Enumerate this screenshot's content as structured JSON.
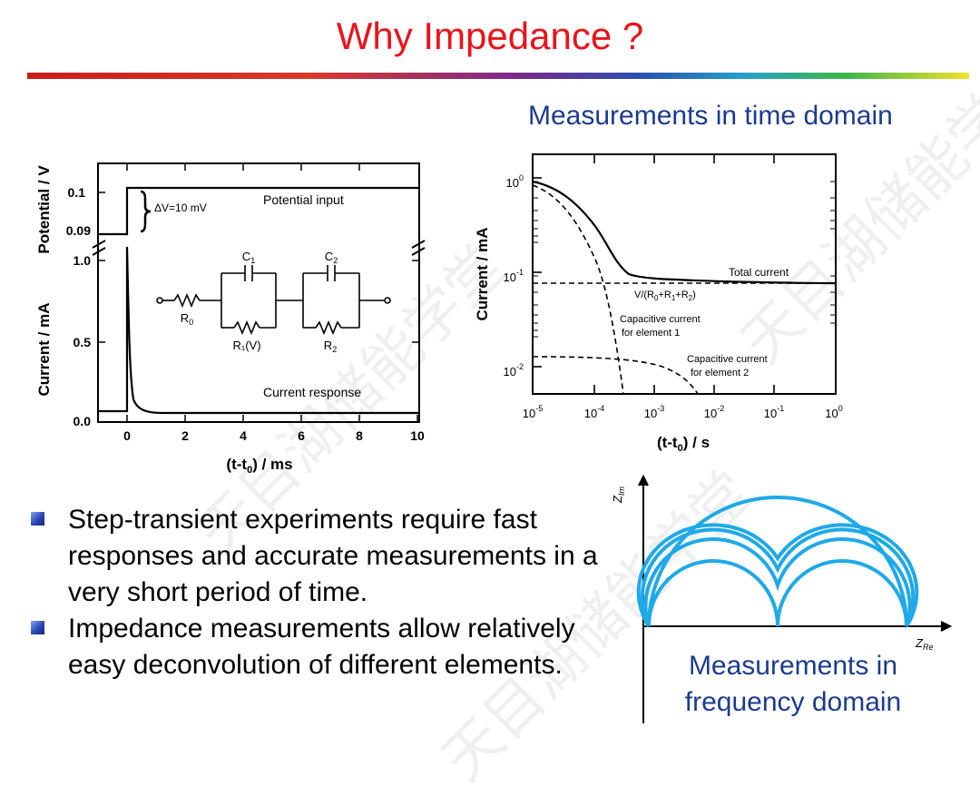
{
  "title": "Why Impedance ?",
  "time_domain_label": "Measurements in time domain",
  "frequency_domain_label": "Measurements in\nfrequency domain",
  "bullets": [
    "Step-transient experiments require fast responses and accurate measurements in a very short period of time.",
    "Impedance measurements allow relatively easy deconvolution of different elements."
  ],
  "watermark_text": "天目湖储能学堂",
  "colors": {
    "title": "#e8141b",
    "heading": "#1c3b8f",
    "nyquist_arcs": "#1fa9e8",
    "bullet": "#2c48b8"
  },
  "chart_data": [
    {
      "type": "line",
      "x_label": "(t-t0) / ms",
      "x_ticks": [
        "0",
        "2",
        "4",
        "6",
        "8",
        "10"
      ],
      "xlim": [
        0,
        10
      ],
      "panels": [
        {
          "y_label": "Potential / V",
          "y_ticks": [
            "0.09",
            "0.1"
          ],
          "series": [
            {
              "name": "Potential input",
              "x": [
                -1,
                0,
                0,
                10
              ],
              "y": [
                0.09,
                0.09,
                0.1,
                0.1
              ]
            }
          ],
          "annotation": "ΔV=10 mV"
        },
        {
          "y_label": "Current / mA",
          "y_ticks": [
            "0.0",
            "0.5",
            "1.0"
          ],
          "series": [
            {
              "name": "Current response",
              "x": [
                -1,
                0,
                0,
                0.05,
                0.1,
                0.2,
                0.3,
                0.5,
                1,
                2,
                10
              ],
              "y": [
                0.03,
                0.03,
                1.0,
                0.7,
                0.45,
                0.25,
                0.15,
                0.08,
                0.06,
                0.06,
                0.06
              ]
            }
          ]
        }
      ],
      "circuit": {
        "labels": [
          "R0",
          "C1",
          "R1(V)",
          "C2",
          "R2"
        ]
      }
    },
    {
      "type": "line",
      "x_label": "(t-t0) / s",
      "y_label": "Current / mA",
      "x_scale": "log",
      "y_scale": "log",
      "x_ticks": [
        "10-5",
        "10-4",
        "10-3",
        "10-2",
        "10-1",
        "100"
      ],
      "y_ticks": [
        "10-2",
        "10-1",
        "100"
      ],
      "xlim": [
        1e-05,
        1
      ],
      "ylim": [
        0.005,
        1.2
      ],
      "series": [
        {
          "name": "Total current",
          "x": [
            1e-05,
            3e-05,
            8e-05,
            0.00015,
            0.0003,
            0.001,
            0.01,
            1
          ],
          "y": [
            0.9,
            0.75,
            0.45,
            0.18,
            0.1,
            0.095,
            0.085,
            0.08
          ]
        },
        {
          "name": "V/(R0+R1+R2)",
          "x": [
            1e-05,
            1
          ],
          "y": [
            0.08,
            0.08
          ]
        },
        {
          "name": "Capacitive current for element 1",
          "x": [
            1e-05,
            3e-05,
            0.0001,
            0.0002,
            0.0003,
            0.0004
          ],
          "y": [
            0.82,
            0.6,
            0.25,
            0.06,
            0.015,
            0.006
          ]
        },
        {
          "name": "Capacitive current for element 2",
          "x": [
            1e-05,
            0.0003,
            0.001,
            0.003,
            0.006
          ],
          "y": [
            0.014,
            0.013,
            0.011,
            0.008,
            0.005
          ]
        }
      ],
      "annotations": [
        "Total current",
        "V/(R0+R1+R2)",
        "Capacitive current for element 1",
        "Capacitive current for element 2"
      ]
    },
    {
      "type": "line",
      "x_label": "ZRe",
      "y_label": "ZIm",
      "series": [
        {
          "x": [
            0,
            0.5,
            1
          ],
          "y": [
            0,
            0.5,
            0
          ]
        },
        {
          "x": [
            0,
            0.25,
            0.5,
            0.75,
            1
          ],
          "y": [
            0,
            0.26,
            0.25,
            0.26,
            0
          ]
        },
        {
          "x": [
            0,
            0.25,
            0.5,
            0.75,
            1
          ],
          "y": [
            0,
            0.24,
            0.17,
            0.24,
            0
          ]
        },
        {
          "x": [
            0,
            0.25,
            0.5,
            0.75,
            1
          ],
          "y": [
            0,
            0.22,
            0.08,
            0.22,
            0
          ]
        },
        {
          "x": [
            0,
            0.25,
            0.5,
            0.75,
            1
          ],
          "y": [
            0,
            0.2,
            0,
            0.2,
            0
          ]
        }
      ]
    }
  ],
  "figures": {
    "step": {
      "x_label_main": "(t-t",
      "x_label_sub": "0",
      "x_label_end": ") / ms",
      "x_ticks": [
        "0",
        "2",
        "4",
        "6",
        "8",
        "10"
      ],
      "pot_label": "Potential / V",
      "pot_ticks": [
        "0.1",
        "0.09"
      ],
      "cur_label": "Current / mA",
      "cur_ticks": [
        "1.0",
        "0.5",
        "0.0"
      ],
      "dv_label": "ΔV=10 mV",
      "potential_input_label": "Potential input",
      "current_response_label": "Current response",
      "c1_main": "C",
      "c1_sub": "1",
      "c2_main": "C",
      "c2_sub": "2",
      "r0_main": "R",
      "r0_sub": "0",
      "r1_label": "R₁(V)",
      "r2_main": "R",
      "r2_sub": "2"
    },
    "log": {
      "y_label": "Current / mA",
      "x_label_main": "(t-t",
      "x_label_sub": "0",
      "x_label_end": ") / s",
      "y_ticks": [
        {
          "base": "10",
          "exp": "0"
        },
        {
          "base": "10",
          "exp": "-1"
        },
        {
          "base": "10",
          "exp": "-2"
        }
      ],
      "x_ticks": [
        {
          "base": "10",
          "exp": "-5"
        },
        {
          "base": "10",
          "exp": "-4"
        },
        {
          "base": "10",
          "exp": "-3"
        },
        {
          "base": "10",
          "exp": "-2"
        },
        {
          "base": "10",
          "exp": "-1"
        },
        {
          "base": "10",
          "exp": "0"
        }
      ],
      "total_current_label": "Total current",
      "vr_label": "V/(R",
      "vr_sub0": "0",
      "vr_plus1": "+R",
      "vr_sub1": "1",
      "vr_plus2": "+R",
      "vr_sub2": "2",
      "vr_end": ")",
      "cap1_line1": "Capacitive current",
      "cap1_line2": "for element 1",
      "cap2_line1": "Capacitive current",
      "cap2_line2": "for element 2"
    },
    "nyquist": {
      "z_im_main": "Z",
      "z_im_sub": "Im",
      "z_re_main": "Z",
      "z_re_sub": "Re"
    }
  }
}
